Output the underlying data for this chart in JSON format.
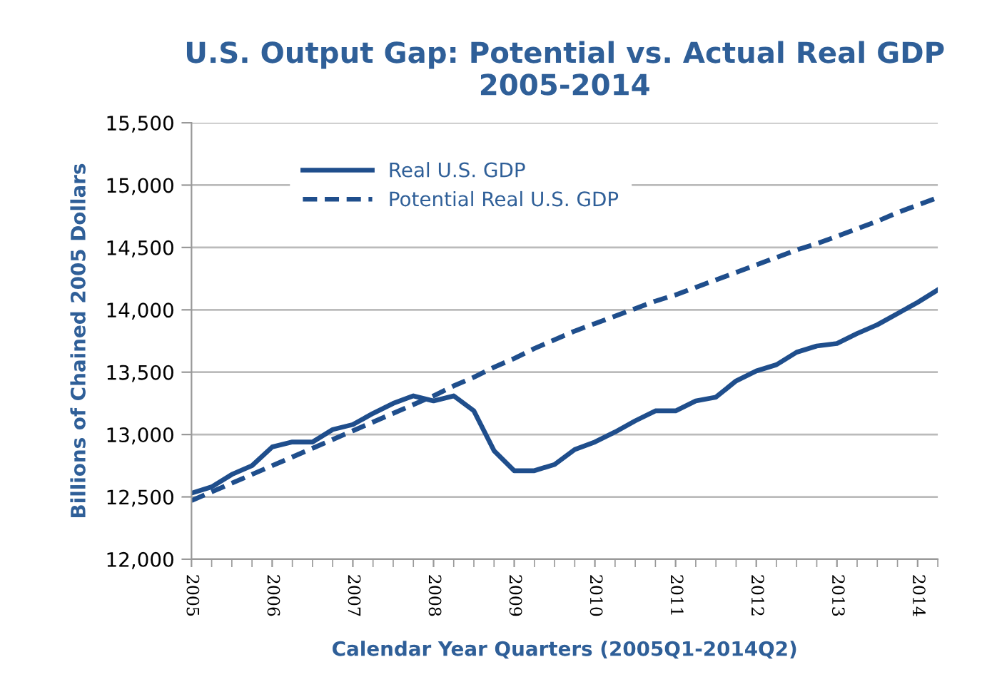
{
  "chart_data": {
    "type": "line",
    "title": "U.S. Output Gap: Potential vs. Actual Real GDP\n2005-2014",
    "xlabel": "Calendar Year Quarters (2005Q1-2014Q2)",
    "ylabel": "Billions of Chained 2005 Dollars",
    "x": [
      2005,
      2005.25,
      2005.5,
      2005.75,
      2006,
      2006.25,
      2006.5,
      2006.75,
      2007,
      2007.25,
      2007.5,
      2007.75,
      2008,
      2008.25,
      2008.5,
      2008.75,
      2009,
      2009.25,
      2009.5,
      2009.75,
      2010,
      2010.25,
      2010.5,
      2010.75,
      2011,
      2011.25,
      2011.5,
      2011.75,
      2012,
      2012.25,
      2012.5,
      2012.75,
      2013,
      2013.25,
      2013.5,
      2013.75,
      2014,
      2014.25
    ],
    "series": [
      {
        "name": "Real U.S. GDP",
        "color": "#1f4e8c",
        "line_style": "solid",
        "values": [
          12530,
          12580,
          12680,
          12750,
          12900,
          12940,
          12940,
          13040,
          13080,
          13170,
          13250,
          13310,
          13270,
          13310,
          13190,
          12870,
          12710,
          12710,
          12760,
          12880,
          12940,
          13020,
          13110,
          13190,
          13190,
          13270,
          13300,
          13430,
          13510,
          13560,
          13660,
          13710,
          13730,
          13810,
          13880,
          13970,
          14060,
          14160
        ]
      },
      {
        "name": "Potential Real U.S. GDP",
        "color": "#1f4e8c",
        "line_style": "dashed",
        "values": [
          12470,
          12540,
          12610,
          12680,
          12750,
          12820,
          12890,
          12960,
          13030,
          13100,
          13170,
          13240,
          13310,
          13390,
          13460,
          13540,
          13610,
          13690,
          13760,
          13830,
          13890,
          13950,
          14010,
          14070,
          14120,
          14180,
          14240,
          14300,
          14360,
          14420,
          14480,
          14530,
          14590,
          14650,
          14710,
          14780,
          14840,
          14900
        ]
      }
    ],
    "xlim": [
      2005,
      2014.25
    ],
    "xticks": [
      2005,
      2006,
      2007,
      2008,
      2009,
      2010,
      2011,
      2012,
      2013,
      2014
    ],
    "ylim": [
      12000,
      15500
    ],
    "yticks": [
      {
        "value": 12000,
        "label": "12,000"
      },
      {
        "value": 12500,
        "label": "12,500"
      },
      {
        "value": 13000,
        "label": "13,000"
      },
      {
        "value": 13500,
        "label": "13,500"
      },
      {
        "value": 14000,
        "label": "14,000"
      },
      {
        "value": 14500,
        "label": "14,500"
      },
      {
        "value": 15000,
        "label": "15,000"
      },
      {
        "value": 15500,
        "label": "15,500"
      }
    ],
    "grid": "y",
    "legend": "top left",
    "marker": "none"
  }
}
